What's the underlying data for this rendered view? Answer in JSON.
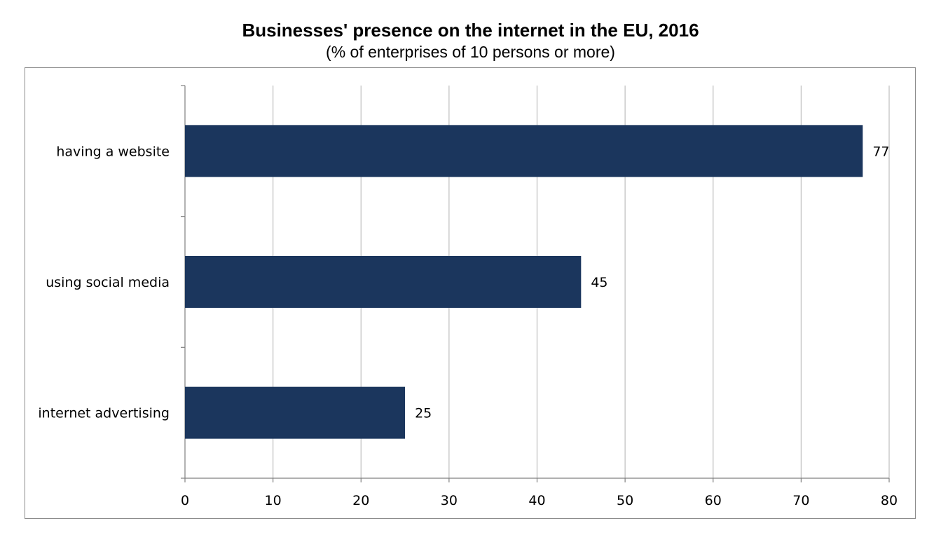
{
  "chart_data": {
    "type": "bar",
    "orientation": "horizontal",
    "title": "Businesses' presence on the internet in the EU, 2016",
    "subtitle": "(% of enterprises of 10 persons or more)",
    "categories": [
      "having a website",
      "using social media",
      "internet advertising"
    ],
    "values": [
      77,
      45,
      25
    ],
    "data_labels": [
      "77",
      "45",
      "25"
    ],
    "xlim": [
      0,
      80
    ],
    "x_ticks": [
      0,
      10,
      20,
      30,
      40,
      50,
      60,
      70,
      80
    ],
    "x_tick_labels": [
      "0",
      "10",
      "20",
      "30",
      "40",
      "50",
      "60",
      "70",
      "80"
    ],
    "grid": "vertical",
    "legend": "none",
    "bar_color": "#1b365d",
    "grid_color": "#bfbfbf"
  }
}
